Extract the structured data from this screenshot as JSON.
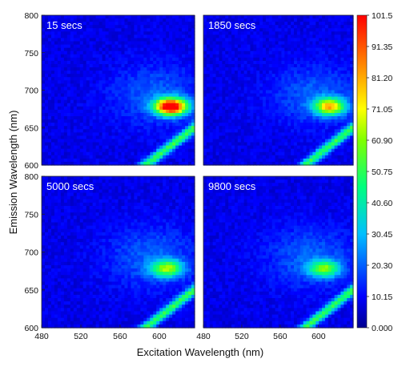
{
  "chart_data": {
    "type": "heatmap",
    "xlabel": "Excitation Wavelength (nm)",
    "ylabel": "Emission Wavelength (nm)",
    "xlim": [
      480,
      636
    ],
    "ylim": [
      600,
      800
    ],
    "x_ticks": [
      "480",
      "520",
      "560",
      "600"
    ],
    "y_ticks": [
      "600",
      "650",
      "700",
      "750",
      "800"
    ],
    "colorbar": {
      "range": [
        0,
        101.5
      ],
      "ticks": [
        "0.000",
        "10.15",
        "20.30",
        "30.45",
        "40.60",
        "50.75",
        "60.90",
        "71.05",
        "81.20",
        "91.35",
        "101.5"
      ],
      "colormap": [
        "#00008f",
        "#0000ff",
        "#00bfff",
        "#00ff7f",
        "#7fff00",
        "#ffff00",
        "#ff8000",
        "#ff0000"
      ]
    },
    "panels": [
      {
        "label": "15 secs",
        "peak_x": 612,
        "peak_y": 678,
        "peak_value": 101.5
      },
      {
        "label": "1850 secs",
        "peak_x": 612,
        "peak_y": 678,
        "peak_value": 65
      },
      {
        "label": "5000 secs",
        "peak_x": 608,
        "peak_y": 678,
        "peak_value": 48
      },
      {
        "label": "9800 secs",
        "peak_x": 606,
        "peak_y": 678,
        "peak_value": 45
      }
    ]
  }
}
